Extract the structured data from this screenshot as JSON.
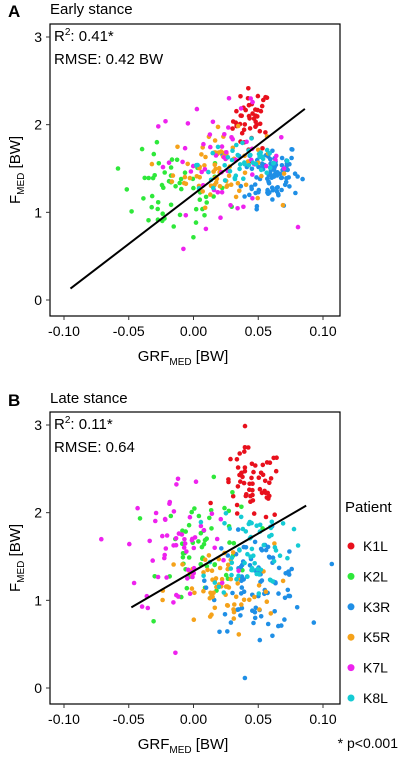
{
  "figure": {
    "footnote": "* p<0.001",
    "legend_title": "Patient",
    "patients": [
      {
        "name": "K1L",
        "color": "#e8101c"
      },
      {
        "name": "K2L",
        "color": "#2ee83a"
      },
      {
        "name": "K3R",
        "color": "#1f8fe6"
      },
      {
        "name": "K5R",
        "color": "#f5a21a"
      },
      {
        "name": "K7L",
        "color": "#ee22ee"
      },
      {
        "name": "K8L",
        "color": "#14cbd4"
      }
    ]
  },
  "chart_data": [
    {
      "type": "scatter",
      "panel": "A",
      "title": "Early stance",
      "xlabel_main": "GRF",
      "xlabel_sub": "MED",
      "xlabel_unit": " [BW]",
      "ylabel_main": "F",
      "ylabel_sub": "MED",
      "ylabel_unit": " [BW]",
      "xlim": [
        -0.1,
        0.1
      ],
      "ylim": [
        0,
        3
      ],
      "xticks": [
        "-0.10",
        "-0.05",
        "0.00",
        "0.05",
        "0.10"
      ],
      "yticks": [
        "0",
        "1",
        "2",
        "3"
      ],
      "stat_r2_prefix": "R",
      "stat_r2_sup": "2",
      "stat_r2_value": ": 0.41*",
      "stat_rmse": "RMSE: 0.42 BW",
      "fit_line": {
        "x": [
          -0.095,
          0.086
        ],
        "y": [
          0.13,
          2.18
        ]
      },
      "grid": false,
      "clusters": [
        {
          "series": "K1L",
          "center": [
            0.045,
            2.05
          ],
          "spread": [
            0.012,
            0.3
          ],
          "n": 45
        },
        {
          "series": "K2L",
          "center": [
            -0.015,
            1.2
          ],
          "spread": [
            0.035,
            0.4
          ],
          "n": 55
        },
        {
          "series": "K3R",
          "center": [
            0.06,
            1.45
          ],
          "spread": [
            0.018,
            0.3
          ],
          "n": 90
        },
        {
          "series": "K5R",
          "center": [
            0.02,
            1.5
          ],
          "spread": [
            0.03,
            0.35
          ],
          "n": 70
        },
        {
          "series": "K7L",
          "center": [
            0.02,
            1.6
          ],
          "spread": [
            0.045,
            0.5
          ],
          "n": 55
        },
        {
          "series": "K8L",
          "center": [
            0.04,
            1.55
          ],
          "spread": [
            0.03,
            0.25
          ],
          "n": 45
        }
      ]
    },
    {
      "type": "scatter",
      "panel": "B",
      "title": "Late stance",
      "xlabel_main": "GRF",
      "xlabel_sub": "MED",
      "xlabel_unit": " [BW]",
      "ylabel_main": "F",
      "ylabel_sub": "MED",
      "ylabel_unit": " [BW]",
      "xlim": [
        -0.1,
        0.1
      ],
      "ylim": [
        0,
        3
      ],
      "xticks": [
        "-0.10",
        "-0.05",
        "0.00",
        "0.05",
        "0.10"
      ],
      "yticks": [
        "0",
        "1",
        "2",
        "3"
      ],
      "stat_r2_prefix": "R",
      "stat_r2_sup": "2",
      "stat_r2_value": ": 0.11*",
      "stat_rmse": "RMSE: 0.64",
      "fit_line": {
        "x": [
          -0.048,
          0.087
        ],
        "y": [
          0.92,
          2.08
        ]
      },
      "grid": false,
      "clusters": [
        {
          "series": "K1L",
          "center": [
            0.045,
            2.3
          ],
          "spread": [
            0.02,
            0.35
          ],
          "n": 60
        },
        {
          "series": "K2L",
          "center": [
            0.01,
            1.6
          ],
          "spread": [
            0.03,
            0.55
          ],
          "n": 55
        },
        {
          "series": "K3R",
          "center": [
            0.05,
            1.2
          ],
          "spread": [
            0.03,
            0.45
          ],
          "n": 90
        },
        {
          "series": "K5R",
          "center": [
            0.02,
            1.1
          ],
          "spread": [
            0.035,
            0.45
          ],
          "n": 65
        },
        {
          "series": "K7L",
          "center": [
            -0.01,
            1.6
          ],
          "spread": [
            0.035,
            0.7
          ],
          "n": 60
        },
        {
          "series": "K8L",
          "center": [
            0.045,
            1.6
          ],
          "spread": [
            0.025,
            0.45
          ],
          "n": 60
        }
      ]
    }
  ]
}
